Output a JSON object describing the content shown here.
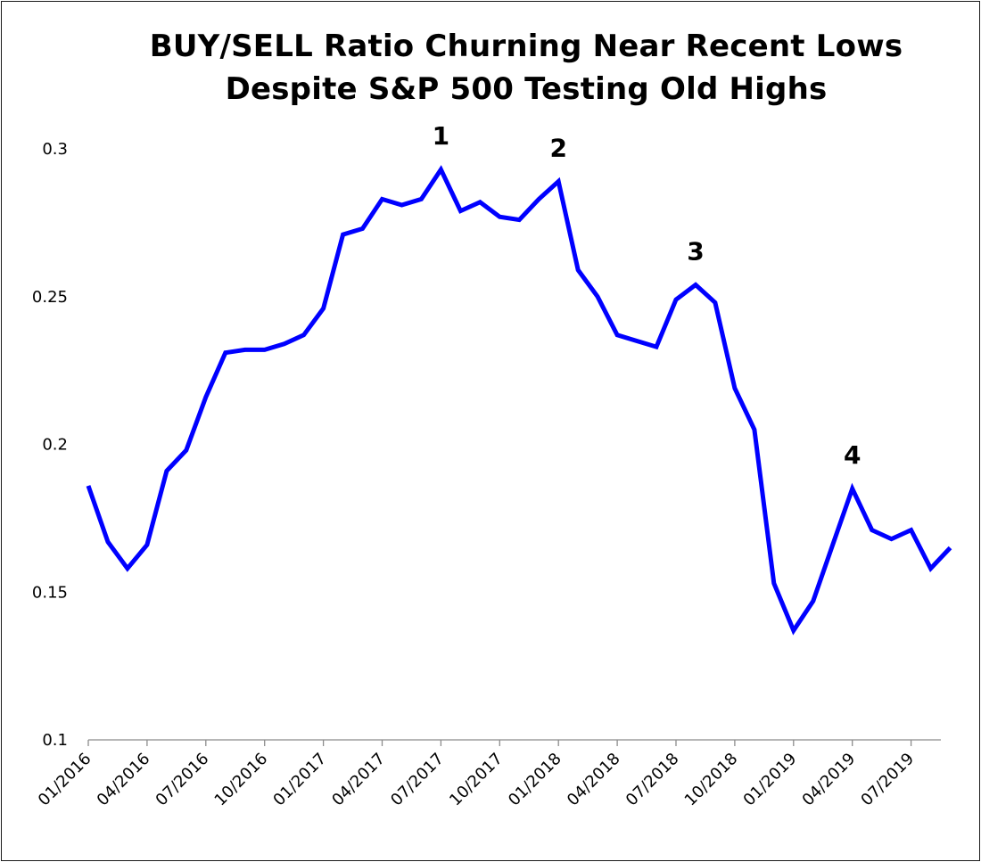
{
  "chart_data": {
    "type": "line",
    "title_line1": "BUY/SELL Ratio Churning Near Recent Lows",
    "title_line2": "Despite S&P 500 Testing Old Highs",
    "xlabel": "",
    "ylabel": "",
    "ylim": [
      0.1,
      0.3
    ],
    "y_ticks": [
      "0.1",
      "0.15",
      "0.2",
      "0.25",
      "0.3"
    ],
    "x_tick_labels": [
      "01/2016",
      "04/2016",
      "07/2016",
      "10/2016",
      "01/2017",
      "04/2017",
      "07/2017",
      "10/2017",
      "01/2018",
      "04/2018",
      "07/2018",
      "10/2018",
      "01/2019",
      "04/2019",
      "07/2019"
    ],
    "grid": false,
    "legend": "none",
    "line_color": "#0000ff",
    "series": [
      {
        "x": [
          "2016-01",
          "2016-02",
          "2016-03",
          "2016-04",
          "2016-05",
          "2016-06",
          "2016-07",
          "2016-08",
          "2016-09",
          "2016-10",
          "2016-11",
          "2016-12",
          "2017-01",
          "2017-02",
          "2017-03",
          "2017-04",
          "2017-05",
          "2017-06",
          "2017-07",
          "2017-08",
          "2017-09",
          "2017-10",
          "2017-11",
          "2017-12",
          "2018-01",
          "2018-02",
          "2018-03",
          "2018-04",
          "2018-05",
          "2018-06",
          "2018-07",
          "2018-08",
          "2018-09",
          "2018-10",
          "2018-11",
          "2018-12",
          "2019-01",
          "2019-02",
          "2019-03",
          "2019-04",
          "2019-05",
          "2019-06",
          "2019-07",
          "2019-08",
          "2019-09"
        ],
        "values": [
          0.186,
          0.167,
          0.158,
          0.166,
          0.191,
          0.198,
          0.216,
          0.231,
          0.232,
          0.232,
          0.234,
          0.237,
          0.246,
          0.271,
          0.273,
          0.283,
          0.281,
          0.283,
          0.293,
          0.279,
          0.282,
          0.277,
          0.276,
          0.283,
          0.289,
          0.259,
          0.25,
          0.237,
          0.235,
          0.233,
          0.249,
          0.254,
          0.248,
          0.219,
          0.205,
          0.153,
          0.137,
          0.147,
          0.166,
          0.185,
          0.171,
          0.168,
          0.171,
          0.158,
          0.165
        ]
      }
    ],
    "annotations": [
      {
        "text": "1",
        "x": "2017-07",
        "y": 0.293
      },
      {
        "text": "2",
        "x": "2018-01",
        "y": 0.289
      },
      {
        "text": "3",
        "x": "2018-08",
        "y": 0.254
      },
      {
        "text": "4",
        "x": "2019-04",
        "y": 0.185
      }
    ]
  }
}
